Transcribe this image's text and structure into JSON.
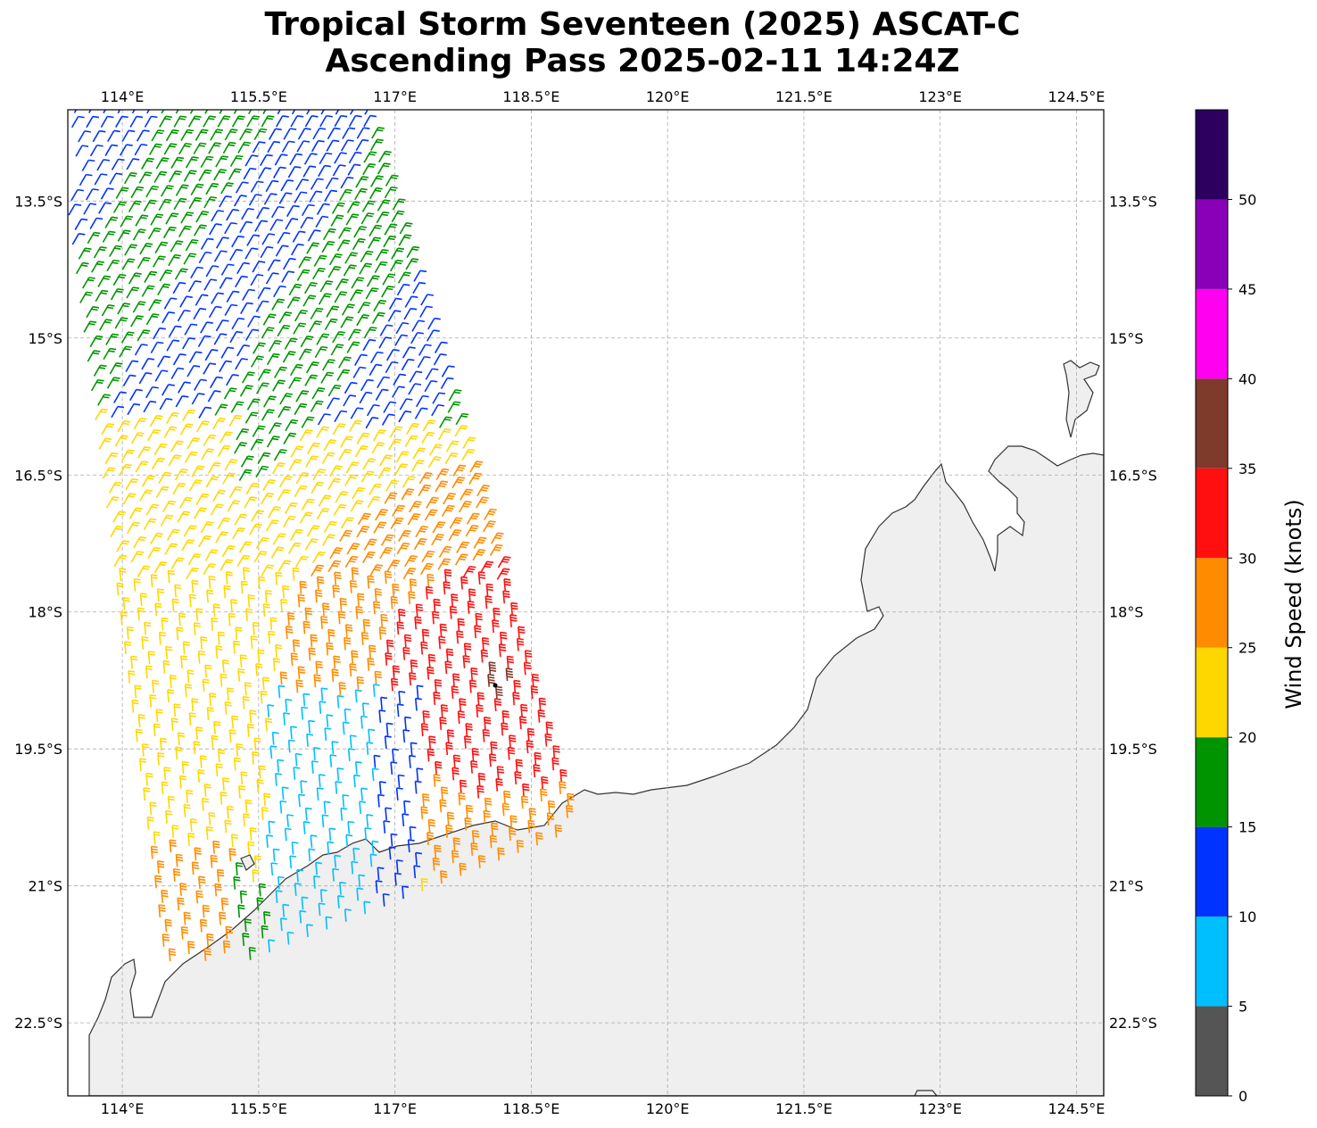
{
  "title": {
    "line1": "Tropical Storm Seventeen (2025) ASCAT-C",
    "line2": "Ascending Pass 2025-02-11 14:24Z"
  },
  "map": {
    "lon_range": [
      113.4,
      124.8
    ],
    "lat_range": [
      -23.3,
      -12.5
    ],
    "lon_ticks": [
      "114°E",
      "115.5°E",
      "117°E",
      "118.5°E",
      "120°E",
      "121.5°E",
      "123°E",
      "124.5°E"
    ],
    "lat_ticks": [
      "13.5°S",
      "15°S",
      "16.5°S",
      "18°S",
      "19.5°S",
      "21°S",
      "22.5°S"
    ],
    "gridlines": true,
    "land_color": "#efefef",
    "coast_color": "#333333"
  },
  "colorbar": {
    "label": "Wind Speed (knots)",
    "ticks": [
      "0",
      "5",
      "10",
      "15",
      "20",
      "25",
      "30",
      "35",
      "40",
      "45",
      "50"
    ],
    "bins": [
      {
        "from": 0,
        "to": 5,
        "color": "#555555"
      },
      {
        "from": 5,
        "to": 10,
        "color": "#00bfff"
      },
      {
        "from": 10,
        "to": 15,
        "color": "#0033ff"
      },
      {
        "from": 15,
        "to": 20,
        "color": "#009400"
      },
      {
        "from": 20,
        "to": 25,
        "color": "#ffd700"
      },
      {
        "from": 25,
        "to": 30,
        "color": "#ff8c00"
      },
      {
        "from": 30,
        "to": 35,
        "color": "#ff0f0f"
      },
      {
        "from": 35,
        "to": 40,
        "color": "#7e3a2a"
      },
      {
        "from": 40,
        "to": 45,
        "color": "#ff00f0"
      },
      {
        "from": 45,
        "to": 50,
        "color": "#8a00b8"
      },
      {
        "from": 50,
        "to": 55,
        "color": "#2d0060"
      }
    ]
  }
}
